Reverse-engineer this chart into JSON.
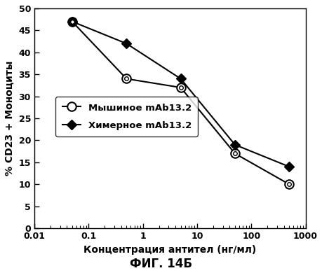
{
  "mouse_x": [
    0.05,
    0.5,
    5,
    50,
    500
  ],
  "mouse_y": [
    47,
    34,
    32,
    17,
    10
  ],
  "chimeric_x": [
    0.05,
    0.5,
    5,
    50,
    500
  ],
  "chimeric_y": [
    47,
    42,
    34,
    19,
    14
  ],
  "mouse_label": "Мышиное mAb13.2",
  "chimeric_label": "Химерное mAb13.2",
  "xlabel": "Концентрация антител (нг/мл)",
  "ylabel": "% CD23 + Моноциты",
  "figure_label": "ФИГ. 14Б",
  "ylim": [
    0,
    50
  ],
  "yticks": [
    0,
    5,
    10,
    15,
    20,
    25,
    30,
    35,
    40,
    45,
    50
  ],
  "line_color": "#000000",
  "bg_color": "#ffffff"
}
